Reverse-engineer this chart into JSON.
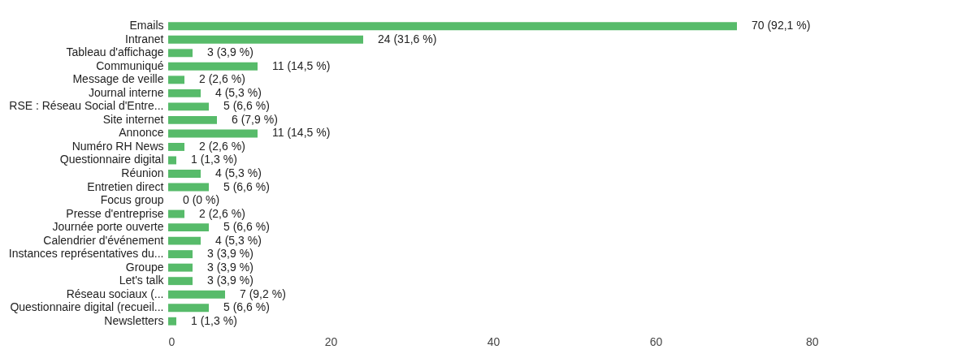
{
  "chart_data": {
    "type": "bar",
    "orientation": "horizontal",
    "categories": [
      "Emails",
      "Intranet",
      "Tableau d'affichage",
      "Communiqué",
      "Message de veille",
      "Journal interne",
      "RSE : Réseau Social d'Entre...",
      "Site internet",
      "Annonce",
      "Numéro RH News",
      "Questionnaire digital",
      "Réunion",
      "Entretien direct",
      "Focus group",
      "Presse d'entreprise",
      "Journée porte ouverte",
      "Calendrier d'événement",
      "Instances représentatives du...",
      "Groupe",
      "Let's talk",
      "Réseau sociaux (...",
      "Questionnaire digital (recueil...",
      "Newsletters"
    ],
    "values": [
      70,
      24,
      3,
      11,
      2,
      4,
      5,
      6,
      11,
      2,
      1,
      4,
      5,
      0,
      2,
      5,
      4,
      3,
      3,
      3,
      7,
      5,
      1
    ],
    "value_labels": [
      "70 (92,1 %)",
      "24 (31,6 %)",
      "3 (3,9 %)",
      "11 (14,5 %)",
      "2 (2,6 %)",
      "4 (5,3 %)",
      "5 (6,6 %)",
      "6 (7,9 %)",
      "11 (14,5 %)",
      "2 (2,6 %)",
      "1 (1,3 %)",
      "4 (5,3 %)",
      "5 (6,6 %)",
      "0 (0 %)",
      "2 (2,6 %)",
      "5 (6,6 %)",
      "4 (5,3 %)",
      "3 (3,9 %)",
      "3 (3,9 %)",
      "3 (3,9 %)",
      "7 (9,2 %)",
      "5 (6,6 %)",
      "1 (1,3 %)"
    ],
    "color": "#57bb6a",
    "xlim": [
      0,
      80
    ],
    "xticks": [
      0,
      20,
      40,
      60,
      80
    ],
    "grid": false
  }
}
